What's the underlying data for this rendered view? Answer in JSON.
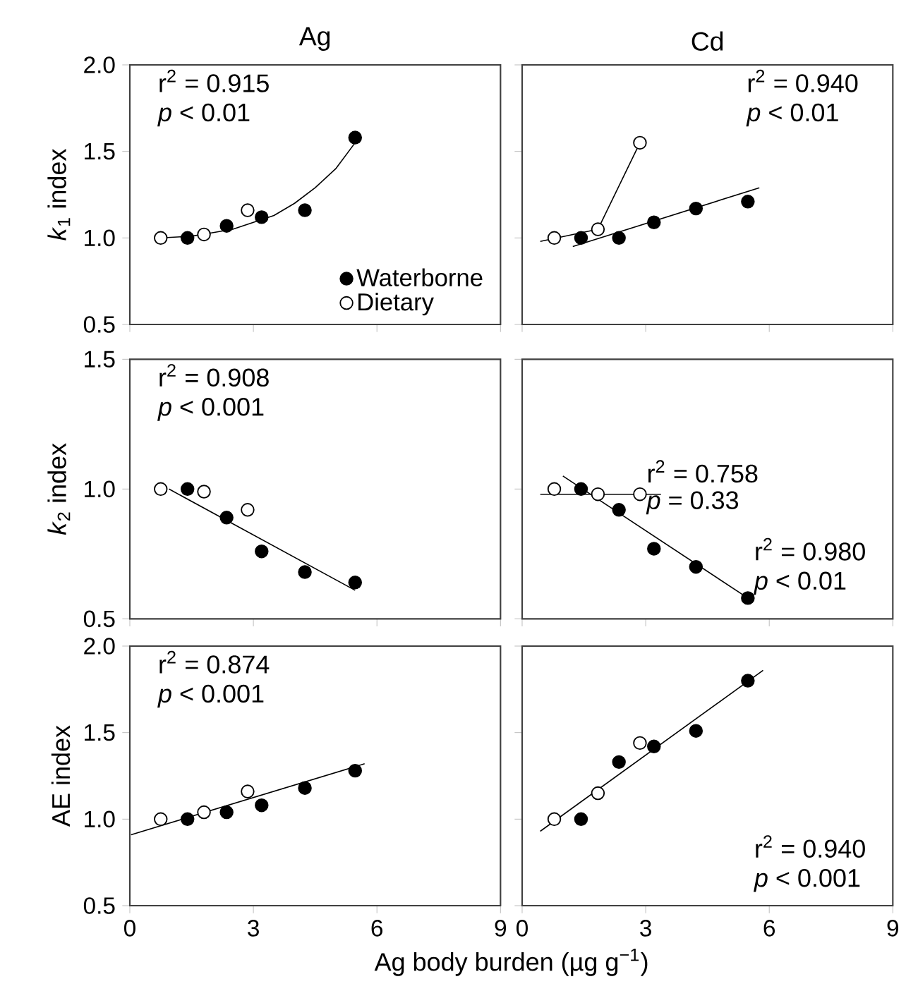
{
  "chart_data": [
    {
      "type": "scatter",
      "title": "Ag",
      "ylabel": "*k*$_{1}$ index",
      "xlim": [
        0,
        9
      ],
      "ylim": [
        0.5,
        2.0
      ],
      "xticks": [
        0,
        3,
        6,
        9
      ],
      "yticks": [
        {
          "value": 0.5,
          "label": "0.5"
        },
        {
          "value": 1,
          "label": "1.0"
        },
        {
          "value": 1.5,
          "label": "1.5"
        },
        {
          "value": 2,
          "label": "2.0"
        }
      ],
      "tick_labels": "y",
      "legend": "bottom right",
      "series": [
        {
          "name": "Waterborne",
          "marker": "circle",
          "color": "#000000",
          "x": [
            1.4,
            2.35,
            3.2,
            4.25,
            5.47
          ],
          "values": [
            1.0,
            1.07,
            1.12,
            1.16,
            1.58
          ]
        },
        {
          "name": "Dietary",
          "marker": "circle",
          "color": "#ffffff",
          "x": [
            0.75,
            1.8,
            2.86
          ],
          "values": [
            1.0,
            1.02,
            1.16
          ]
        },
        {
          "type": "line",
          "marker": "none",
          "color": "#000000",
          "x": [
            0.75,
            1.5,
            2.0,
            2.5,
            3.0,
            3.5,
            4.0,
            4.5,
            5.0,
            5.47
          ],
          "values": [
            1.0,
            1.01,
            1.03,
            1.05,
            1.09,
            1.13,
            1.2,
            1.29,
            1.4,
            1.55
          ]
        }
      ],
      "annotations": [
        "r$^{2}$ = 0.915",
        "*p* < 0.01"
      ]
    },
    {
      "type": "scatter",
      "title": "Cd",
      "xlim": [
        0,
        9
      ],
      "ylim": [
        0.5,
        2.0
      ],
      "xticks": [
        0,
        3,
        6,
        9
      ],
      "yticks": [
        {
          "value": 0.5,
          "label": null
        },
        {
          "value": 1,
          "label": null
        },
        {
          "value": 1.5,
          "label": null
        },
        {
          "value": 2,
          "label": null
        }
      ],
      "tick_labels": false,
      "series": [
        {
          "marker": "circle",
          "color": "#000000",
          "x": [
            1.43,
            2.35,
            3.2,
            4.22,
            5.48
          ],
          "values": [
            1.0,
            1.0,
            1.09,
            1.17,
            1.21
          ]
        },
        {
          "marker": "circle",
          "color": "#ffffff",
          "x": [
            0.78,
            1.84,
            2.86
          ],
          "values": [
            1.0,
            1.05,
            1.55
          ]
        },
        {
          "type": "line",
          "marker": "none",
          "color": "#000000",
          "x": [
            1.23,
            5.76
          ],
          "values": [
            0.95,
            1.29
          ]
        },
        {
          "type": "line",
          "marker": "none",
          "color": "#000000",
          "x": [
            0.44,
            1.84,
            2.86
          ],
          "values": [
            0.98,
            1.05,
            1.55
          ]
        }
      ],
      "annotations": [
        "r$^{2}$ = 0.940",
        "*p* < 0.01"
      ]
    },
    {
      "type": "scatter",
      "ylabel": "*k*$_{2}$ index",
      "xlim": [
        0,
        9
      ],
      "ylim": [
        0.5,
        1.5
      ],
      "xticks": [
        0,
        3,
        6,
        9
      ],
      "yticks": [
        {
          "value": 0.5,
          "label": "0.5"
        },
        {
          "value": 1,
          "label": "1.0"
        },
        {
          "value": 1.5,
          "label": "1.5"
        }
      ],
      "tick_labels": "y",
      "series": [
        {
          "marker": "circle",
          "color": "#000000",
          "x": [
            1.4,
            2.35,
            3.2,
            4.25,
            5.47
          ],
          "values": [
            1.0,
            0.89,
            0.76,
            0.68,
            0.64
          ]
        },
        {
          "marker": "circle",
          "color": "#ffffff",
          "x": [
            0.75,
            1.8,
            2.86
          ],
          "values": [
            1.0,
            0.99,
            0.92
          ]
        },
        {
          "type": "line",
          "marker": "none",
          "color": "#000000",
          "x": [
            0.95,
            5.47
          ],
          "values": [
            1.0,
            0.61
          ]
        }
      ],
      "annotations": [
        "r$^{2}$ = 0.908",
        "*p* < 0.001"
      ]
    },
    {
      "type": "scatter",
      "xlim": [
        0,
        9
      ],
      "ylim": [
        0.5,
        1.5
      ],
      "xticks": [
        0,
        3,
        6,
        9
      ],
      "yticks": [
        {
          "value": 0.5,
          "label": null
        },
        {
          "value": 1,
          "label": null
        },
        {
          "value": 1.5,
          "label": null
        }
      ],
      "tick_labels": false,
      "series": [
        {
          "marker": "circle",
          "color": "#000000",
          "x": [
            1.43,
            2.35,
            3.2,
            4.22,
            5.48
          ],
          "values": [
            1.0,
            0.92,
            0.77,
            0.7,
            0.58
          ]
        },
        {
          "marker": "circle",
          "color": "#ffffff",
          "x": [
            0.78,
            1.84,
            2.86
          ],
          "values": [
            1.0,
            0.98,
            0.98
          ]
        },
        {
          "type": "line",
          "marker": "none",
          "color": "#000000",
          "x": [
            0.99,
            5.48
          ],
          "values": [
            1.05,
            0.58
          ]
        },
        {
          "type": "line",
          "marker": "none",
          "color": "#000000",
          "x": [
            0.44,
            3.37
          ],
          "values": [
            0.98,
            0.98
          ]
        }
      ],
      "annotations": [
        "r$^{2}$ = 0.758",
        "*p* = 0.33",
        "r$^{2}$ = 0.980",
        "*p* < 0.01"
      ]
    },
    {
      "type": "scatter",
      "ylabel": "AE index",
      "xlabel": "Ag body burden (µg g$^{−1}$)",
      "xlim": [
        0,
        9
      ],
      "ylim": [
        0.5,
        2.0
      ],
      "xticks": [
        0,
        3,
        6,
        9
      ],
      "yticks": [
        {
          "value": 0.5,
          "label": "0.5"
        },
        {
          "value": 1,
          "label": "1.0"
        },
        {
          "value": 1.5,
          "label": "1.5"
        },
        {
          "value": 2,
          "label": "2.0"
        }
      ],
      "series": [
        {
          "marker": "circle",
          "color": "#000000",
          "x": [
            1.4,
            2.35,
            3.2,
            4.25,
            5.47
          ],
          "values": [
            1.0,
            1.04,
            1.08,
            1.18,
            1.28
          ]
        },
        {
          "marker": "circle",
          "color": "#ffffff",
          "x": [
            0.75,
            1.8,
            2.86
          ],
          "values": [
            1.0,
            1.04,
            1.16
          ]
        },
        {
          "type": "line",
          "marker": "none",
          "color": "#000000",
          "x": [
            0.03,
            5.7
          ],
          "values": [
            0.91,
            1.32
          ]
        }
      ],
      "annotations": [
        "r$^{2}$ = 0.874",
        "*p* < 0.001"
      ]
    },
    {
      "type": "scatter",
      "xlim": [
        0,
        9
      ],
      "ylim": [
        0.5,
        2.0
      ],
      "xticks": [
        0,
        3,
        6,
        9
      ],
      "yticks": [
        {
          "value": 0.5,
          "label": null
        },
        {
          "value": 1,
          "label": null
        },
        {
          "value": 1.5,
          "label": null
        },
        {
          "value": 2,
          "label": null
        }
      ],
      "tick_labels": "x",
      "series": [
        {
          "marker": "circle",
          "color": "#000000",
          "x": [
            1.43,
            2.35,
            3.2,
            4.22,
            5.48
          ],
          "values": [
            1.0,
            1.33,
            1.42,
            1.51,
            1.8
          ]
        },
        {
          "marker": "circle",
          "color": "#ffffff",
          "x": [
            0.78,
            1.84,
            2.86
          ],
          "values": [
            1.0,
            1.15,
            1.44
          ]
        },
        {
          "type": "line",
          "marker": "none",
          "color": "#000000",
          "x": [
            0.44,
            5.85
          ],
          "values": [
            0.93,
            1.86
          ]
        }
      ],
      "annotations": [
        "r$^{2}$ = 0.940",
        "*p* < 0.001"
      ]
    }
  ]
}
